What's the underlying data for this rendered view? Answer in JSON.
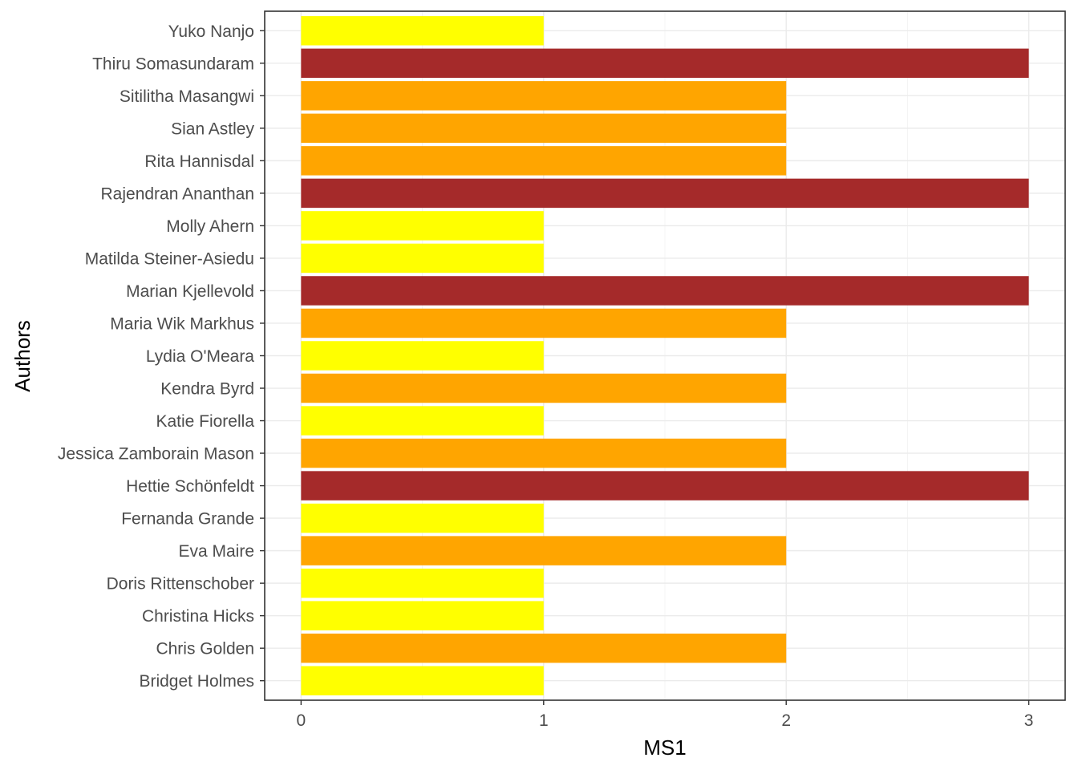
{
  "chart_data": {
    "type": "bar",
    "orientation": "horizontal",
    "xlabel": "MS1",
    "ylabel": "Authors",
    "xlim": [
      -0.15,
      3.15
    ],
    "x_ticks": [
      0,
      1,
      2,
      3
    ],
    "grid": true,
    "legend": "none",
    "colors": {
      "1": "#ffff00",
      "2": "#ffa500",
      "3": "#a52a2a"
    },
    "categories": [
      "Bridget Holmes",
      "Chris Golden",
      "Christina Hicks",
      "Doris Rittenschober",
      "Eva Maire",
      "Fernanda Grande",
      "Hettie Schönfeldt",
      "Jessica Zamborain Mason",
      "Katie Fiorella",
      "Kendra Byrd",
      "Lydia O'Meara",
      "Maria Wik Markhus",
      "Marian Kjellevold",
      "Matilda Steiner-Asiedu",
      "Molly Ahern",
      "Rajendran Ananthan",
      "Rita Hannisdal",
      "Sian Astley",
      "Sitilitha Masangwi",
      "Thiru Somasundaram",
      "Yuko Nanjo"
    ],
    "values": [
      1,
      2,
      1,
      1,
      2,
      1,
      3,
      2,
      1,
      2,
      1,
      2,
      3,
      1,
      1,
      3,
      2,
      2,
      2,
      3,
      1
    ]
  }
}
